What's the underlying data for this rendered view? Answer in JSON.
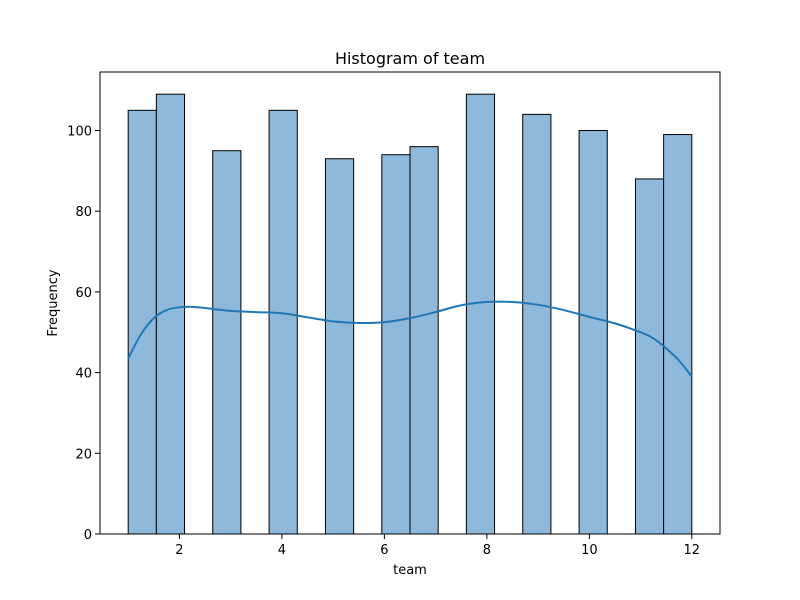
{
  "chart_data": {
    "type": "bar",
    "title": "Histogram of team",
    "xlabel": "team",
    "ylabel": "Frequency",
    "xlim": [
      0.45,
      12.55
    ],
    "ylim": [
      0,
      114.5
    ],
    "xticks": [
      2,
      4,
      6,
      8,
      10,
      12
    ],
    "yticks": [
      0,
      20,
      40,
      60,
      80,
      100
    ],
    "bar_color": "#8fb9da",
    "edge_color": "#000000",
    "kde_color": "#1f77b4",
    "bins": [
      {
        "x0": 1.0,
        "x1": 1.55,
        "value": 105
      },
      {
        "x0": 1.55,
        "x1": 2.1,
        "value": 109
      },
      {
        "x0": 2.65,
        "x1": 3.2,
        "value": 95
      },
      {
        "x0": 3.75,
        "x1": 4.3,
        "value": 105
      },
      {
        "x0": 4.85,
        "x1": 5.4,
        "value": 93
      },
      {
        "x0": 5.95,
        "x1": 6.5,
        "value": 94
      },
      {
        "x0": 6.5,
        "x1": 7.05,
        "value": 96
      },
      {
        "x0": 7.6,
        "x1": 8.15,
        "value": 109
      },
      {
        "x0": 8.7,
        "x1": 9.25,
        "value": 104
      },
      {
        "x0": 9.8,
        "x1": 10.35,
        "value": 100
      },
      {
        "x0": 10.9,
        "x1": 11.45,
        "value": 88
      },
      {
        "x0": 11.45,
        "x1": 12.0,
        "value": 99
      }
    ],
    "kde": {
      "x": [
        1.0,
        1.25,
        1.5,
        1.75,
        2.0,
        2.25,
        2.5,
        3.0,
        3.5,
        4.0,
        4.5,
        5.0,
        5.5,
        6.0,
        6.5,
        7.0,
        7.5,
        8.0,
        8.5,
        9.0,
        9.5,
        10.0,
        10.5,
        11.0,
        11.25,
        11.5,
        11.75,
        12.0
      ],
      "y": [
        43.5,
        49.5,
        53.5,
        55.5,
        56.2,
        56.3,
        56.0,
        55.3,
        55.0,
        54.7,
        53.7,
        52.7,
        52.3,
        52.5,
        53.5,
        55.0,
        56.7,
        57.5,
        57.5,
        56.8,
        55.5,
        53.8,
        52.2,
        50.0,
        48.5,
        46.0,
        43.0,
        39.0
      ]
    }
  }
}
